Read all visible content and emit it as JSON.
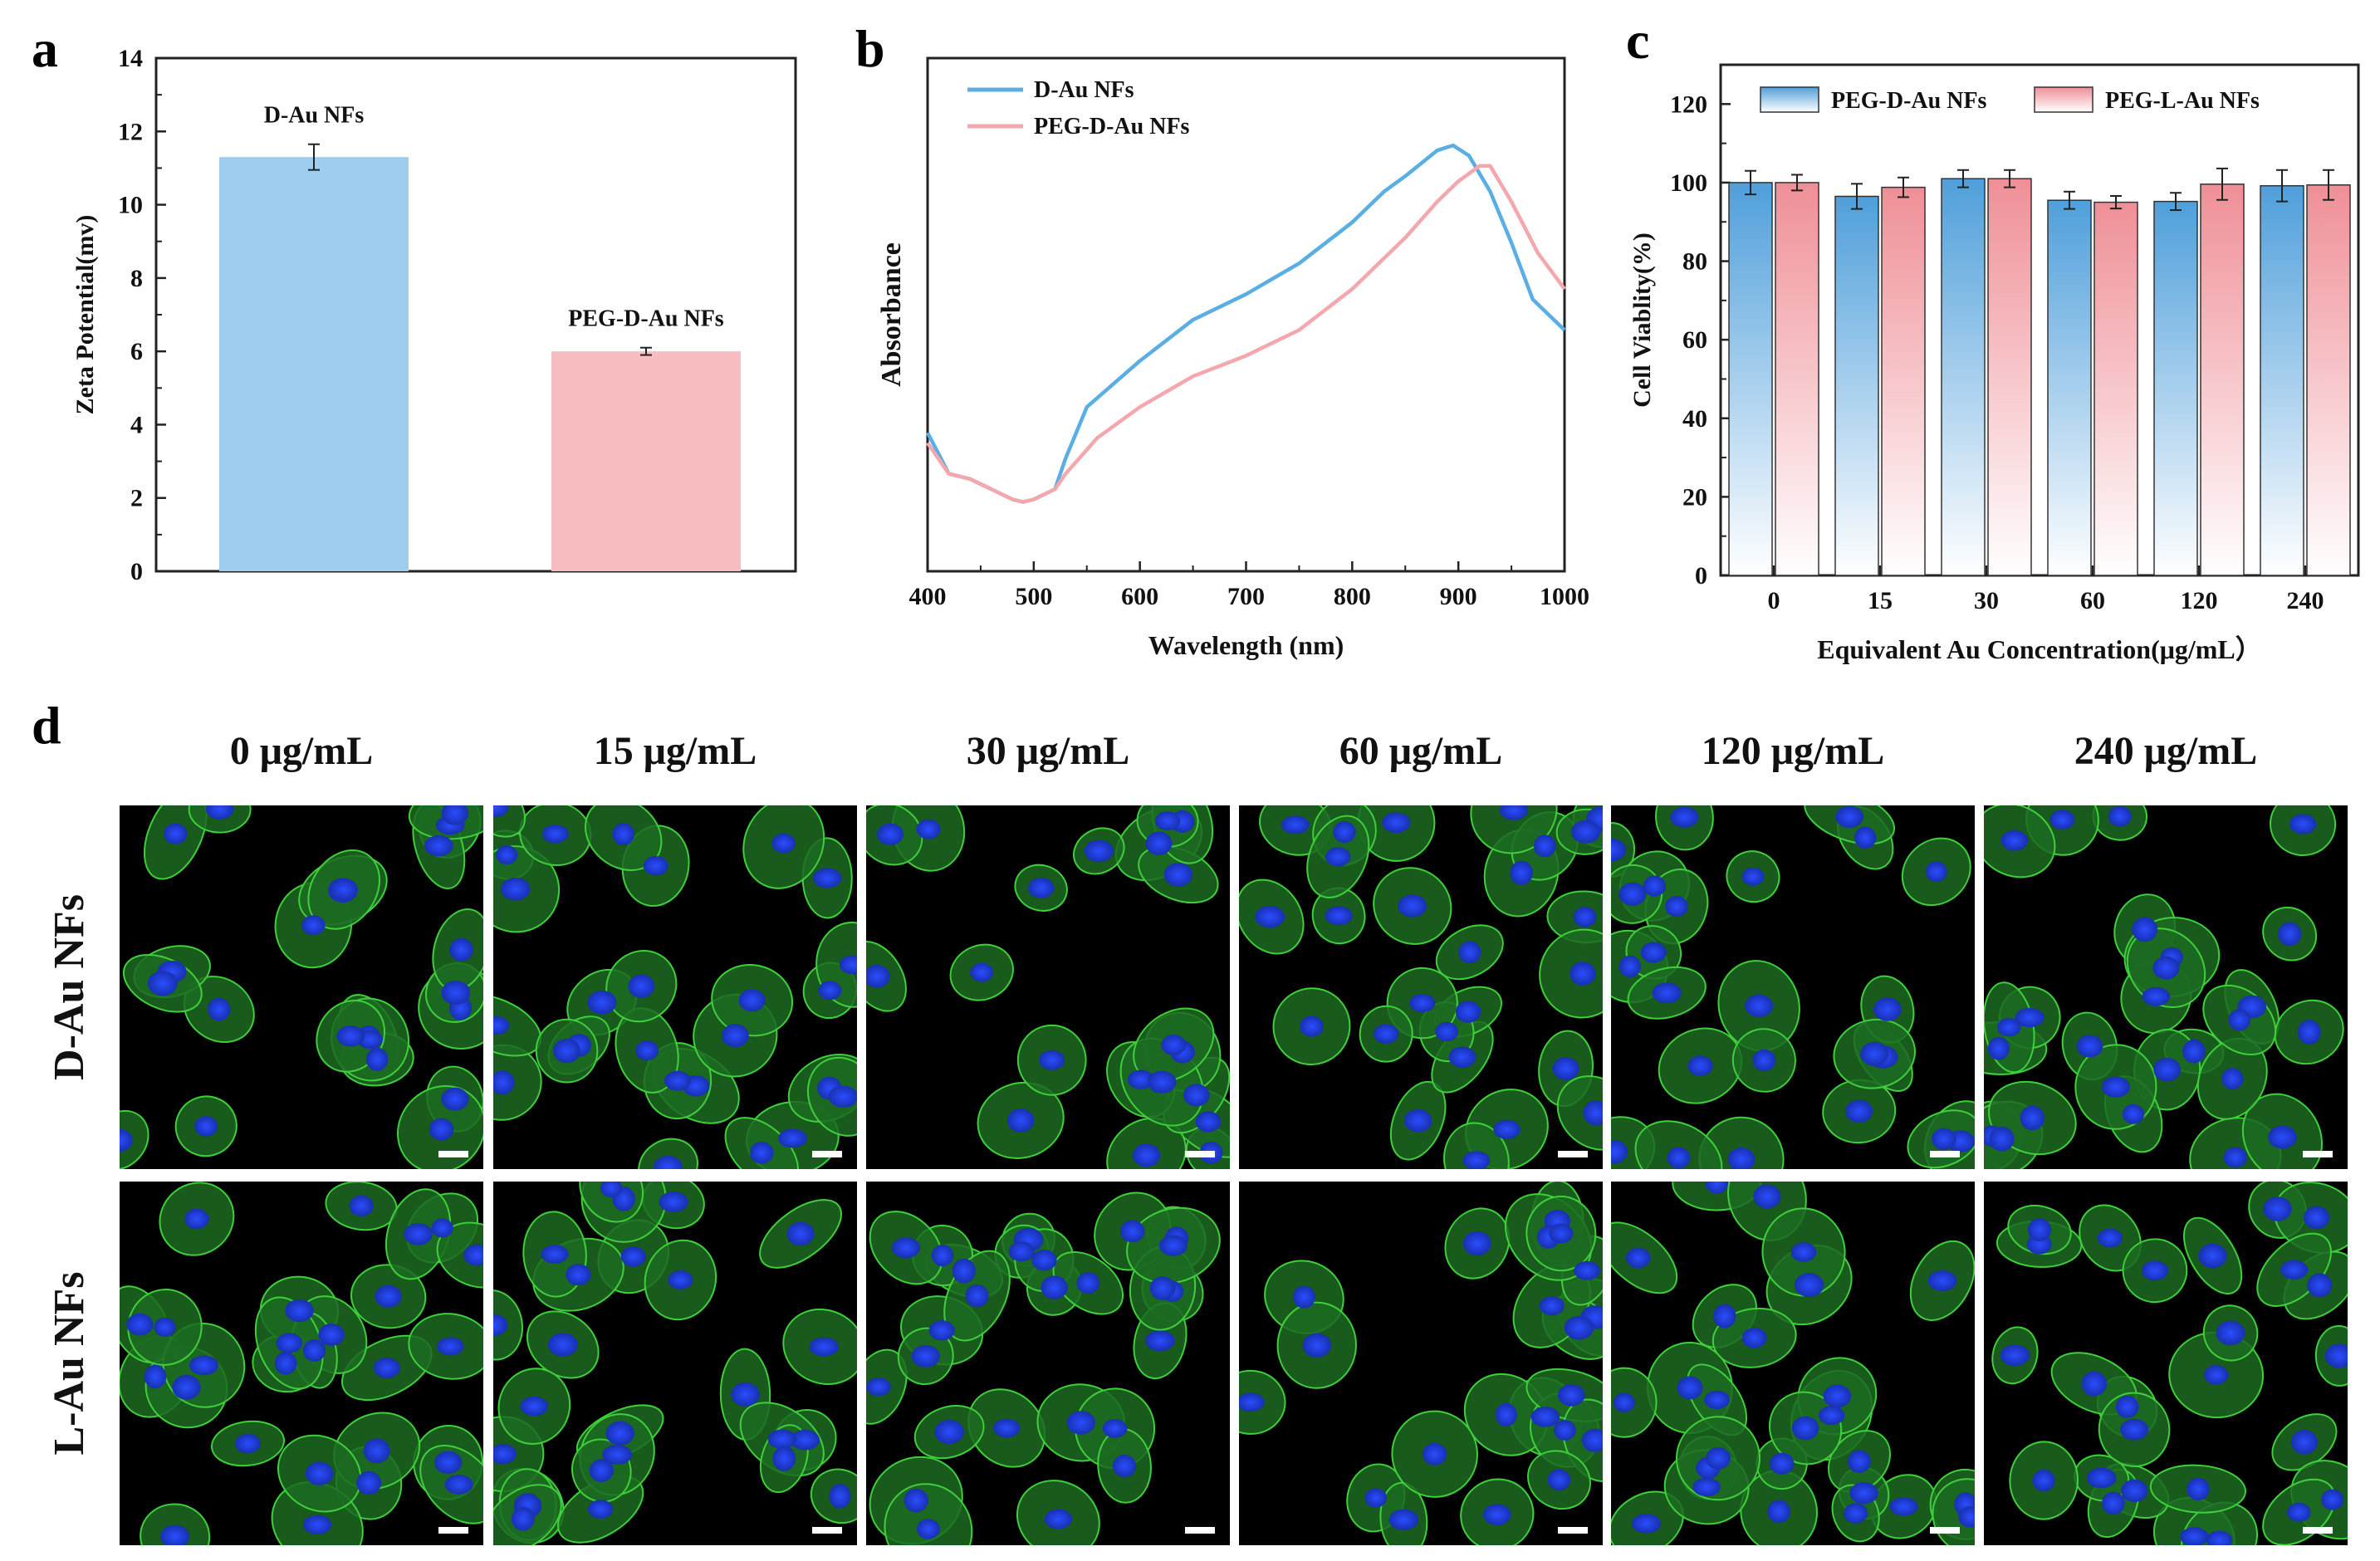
{
  "panels": {
    "a": "a",
    "b": "b",
    "c": "c",
    "d": "d"
  },
  "chart_data": [
    {
      "id": "a",
      "type": "bar",
      "title": "",
      "xlabel": "",
      "ylabel": "Zeta Potential(mv)",
      "ylim": [
        0,
        14
      ],
      "yticks": [
        "0",
        "2",
        "4",
        "6",
        "8",
        "10",
        "12",
        "14"
      ],
      "categories": [
        "D-Au NFs",
        "PEG-D-Au NFs"
      ],
      "values": [
        11.3,
        6.0
      ],
      "errors": [
        0.35,
        0.1
      ],
      "colors": [
        "#9ecdef",
        "#f7bdc1"
      ]
    },
    {
      "id": "b",
      "type": "line",
      "xlabel": "Wavelength (nm)",
      "ylabel": "Absorbance",
      "xlim": [
        400,
        1000
      ],
      "ylim": [
        0,
        1
      ],
      "xticks": [
        "400",
        "500",
        "600",
        "700",
        "800",
        "900",
        "1000"
      ],
      "series": [
        {
          "name": "D-Au NFs",
          "color": "#5aaee3",
          "x": [
            400,
            420,
            440,
            460,
            480,
            490,
            500,
            520,
            530,
            550,
            600,
            650,
            700,
            750,
            800,
            830,
            850,
            880,
            895,
            910,
            930,
            950,
            970,
            1000
          ],
          "y": [
            0.27,
            0.19,
            0.18,
            0.16,
            0.14,
            0.135,
            0.14,
            0.16,
            0.22,
            0.32,
            0.41,
            0.49,
            0.54,
            0.6,
            0.68,
            0.74,
            0.77,
            0.82,
            0.83,
            0.81,
            0.74,
            0.64,
            0.53,
            0.47
          ]
        },
        {
          "name": "PEG-D-Au NFs",
          "color": "#f4a8ad",
          "x": [
            400,
            420,
            440,
            460,
            480,
            490,
            500,
            520,
            530,
            560,
            600,
            650,
            700,
            750,
            800,
            850,
            880,
            900,
            920,
            930,
            950,
            975,
            1000
          ],
          "y": [
            0.25,
            0.19,
            0.18,
            0.16,
            0.14,
            0.135,
            0.14,
            0.16,
            0.19,
            0.26,
            0.32,
            0.38,
            0.42,
            0.47,
            0.55,
            0.65,
            0.72,
            0.76,
            0.79,
            0.79,
            0.72,
            0.62,
            0.55
          ]
        }
      ]
    },
    {
      "id": "c",
      "type": "bar",
      "xlabel": "Equivalent Au Concentration(μg/mL）",
      "ylabel": "Cell Viablity(%)",
      "ylim": [
        0,
        130
      ],
      "yticks": [
        "0",
        "20",
        "40",
        "60",
        "80",
        "100",
        "120"
      ],
      "categories": [
        "0",
        "15",
        "30",
        "60",
        "120",
        "240"
      ],
      "series": [
        {
          "name": "PEG-D-Au NFs",
          "color": "#4f9fdb",
          "values": [
            100,
            96.5,
            101,
            95.5,
            95.2,
            99.2
          ],
          "errors": [
            3,
            3.2,
            2.2,
            2.2,
            2.2,
            4
          ]
        },
        {
          "name": "PEG-L-Au NFs",
          "color": "#ef8f97",
          "values": [
            100,
            98.8,
            101,
            95,
            99.6,
            99.4
          ],
          "errors": [
            2,
            2.5,
            2.2,
            1.6,
            4,
            3.8
          ]
        }
      ]
    }
  ],
  "micrographs": {
    "concentrations": [
      "0 μg/mL",
      "15 μg/mL",
      "30 μg/mL",
      "60 μg/mL",
      "120 μg/mL",
      "240 μg/mL"
    ],
    "rows": [
      "D-Au NFs",
      "L-Au NFs"
    ]
  }
}
